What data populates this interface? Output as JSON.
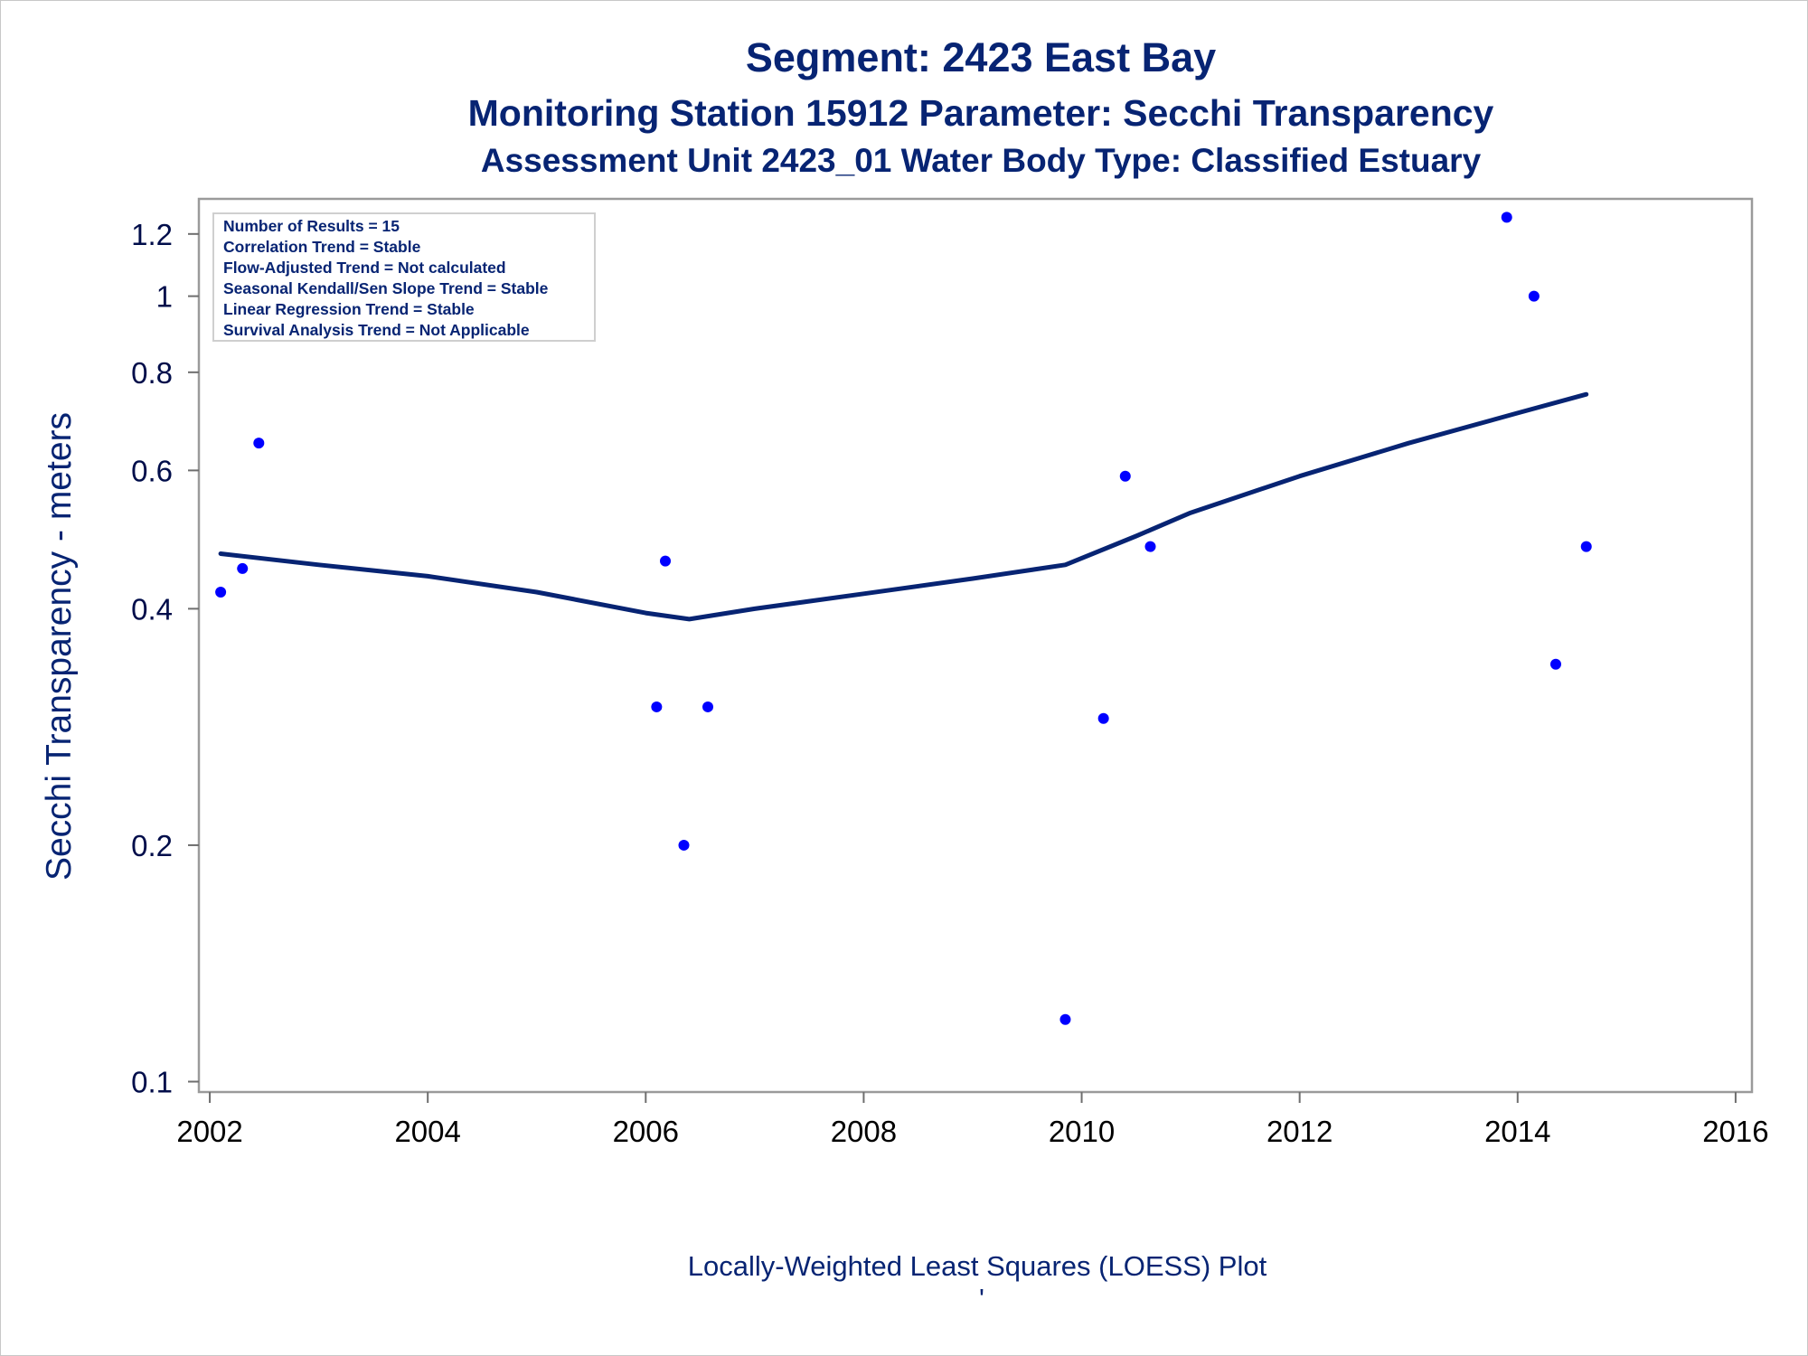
{
  "chart_data": {
    "type": "scatter",
    "title": "Segment: 2423  East Bay",
    "subtitle": "Monitoring Station 15912 Parameter: Secchi Transparency",
    "subtitle2": "Assessment Unit 2423_01   Water Body Type: Classified Estuary",
    "ylabel": "Secchi Transparency - meters",
    "footnote": "Locally-Weighted Least Squares (LOESS) Plot",
    "footnote_mark": "'",
    "y_scale": "log",
    "xlim": [
      2001.9,
      2016.15
    ],
    "ylim": [
      0.097,
      1.33
    ],
    "x_ticks": [
      "2002",
      "2004",
      "2006",
      "2008",
      "2010",
      "2012",
      "2014",
      "2016"
    ],
    "y_ticks": [
      "0.1",
      "0.2",
      "0.4",
      "0.6",
      "0.8",
      "1",
      "1.2"
    ],
    "inset_box": [
      "Number of Results = 15",
      "Correlation Trend = Stable",
      "Flow-Adjusted Trend = Not calculated",
      "Seasonal Kendall/Sen Slope Trend = Stable",
      "Linear Regression Trend = Stable",
      "Survival Analysis Trend = Not Applicable"
    ],
    "series": [
      {
        "kind": "scatter",
        "color": "#0000ff",
        "points": [
          {
            "x": 2002.1,
            "y": 0.42
          },
          {
            "x": 2002.3,
            "y": 0.45
          },
          {
            "x": 2002.45,
            "y": 0.65
          },
          {
            "x": 2006.1,
            "y": 0.3
          },
          {
            "x": 2006.18,
            "y": 0.46
          },
          {
            "x": 2006.35,
            "y": 0.2
          },
          {
            "x": 2006.57,
            "y": 0.3
          },
          {
            "x": 2009.85,
            "y": 0.12
          },
          {
            "x": 2010.2,
            "y": 0.29
          },
          {
            "x": 2010.4,
            "y": 0.59
          },
          {
            "x": 2010.63,
            "y": 0.48
          },
          {
            "x": 2013.9,
            "y": 1.26
          },
          {
            "x": 2014.15,
            "y": 1.0
          },
          {
            "x": 2014.35,
            "y": 0.34
          },
          {
            "x": 2014.63,
            "y": 0.48
          }
        ]
      },
      {
        "kind": "line",
        "color": "#072473",
        "points": [
          {
            "x": 2002.1,
            "y": 0.47
          },
          {
            "x": 2003.0,
            "y": 0.455
          },
          {
            "x": 2004.0,
            "y": 0.44
          },
          {
            "x": 2005.0,
            "y": 0.42
          },
          {
            "x": 2006.0,
            "y": 0.395
          },
          {
            "x": 2006.4,
            "y": 0.388
          },
          {
            "x": 2007.0,
            "y": 0.4
          },
          {
            "x": 2008.0,
            "y": 0.418
          },
          {
            "x": 2009.0,
            "y": 0.437
          },
          {
            "x": 2009.85,
            "y": 0.455
          },
          {
            "x": 2010.5,
            "y": 0.495
          },
          {
            "x": 2011.0,
            "y": 0.53
          },
          {
            "x": 2012.0,
            "y": 0.59
          },
          {
            "x": 2013.0,
            "y": 0.65
          },
          {
            "x": 2014.0,
            "y": 0.71
          },
          {
            "x": 2014.63,
            "y": 0.75
          }
        ]
      }
    ]
  }
}
